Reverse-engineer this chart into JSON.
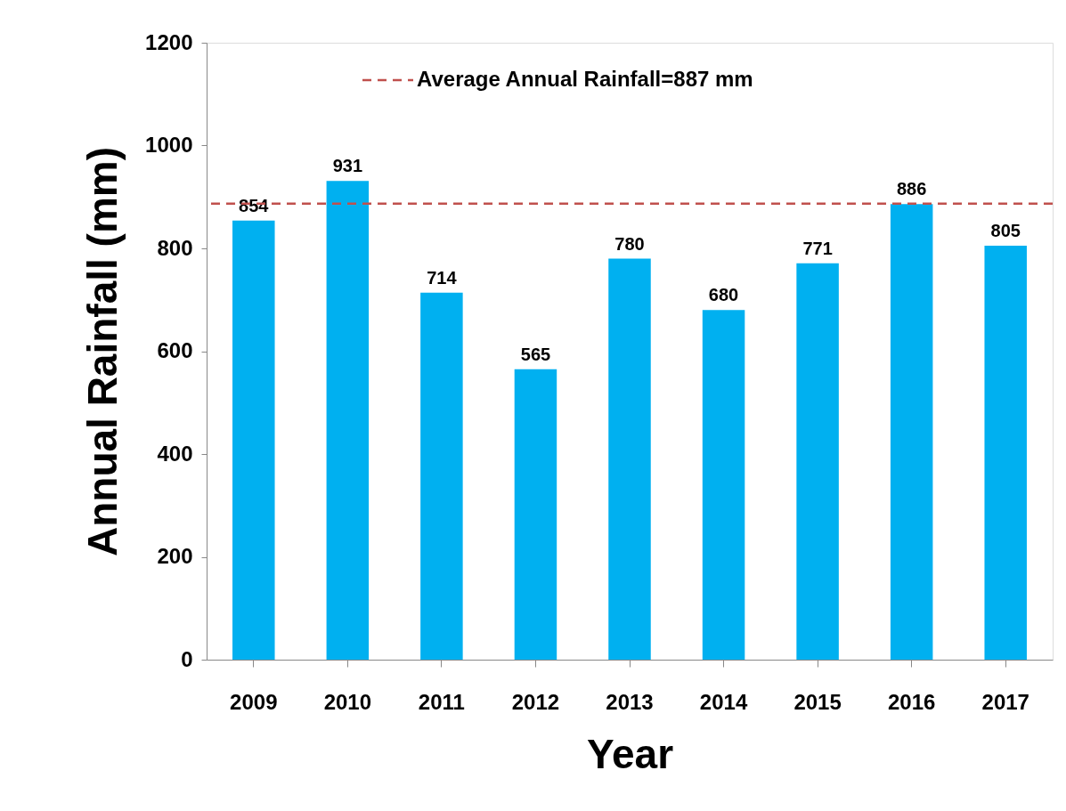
{
  "chart_data": {
    "type": "bar",
    "xlabel": "Year",
    "ylabel": "Annual Rainfall (mm)",
    "categories": [
      "2009",
      "2010",
      "2011",
      "2012",
      "2013",
      "2014",
      "2015",
      "2016",
      "2017"
    ],
    "values": [
      854,
      931,
      714,
      565,
      780,
      680,
      771,
      886,
      805
    ],
    "color": "#00b0f0",
    "ylim": [
      0,
      1200
    ],
    "yticks": [
      0,
      200,
      400,
      600,
      800,
      1000,
      1200
    ],
    "grid": false,
    "data_labels": true,
    "ref_lines": [
      {
        "axis": "y",
        "value": 887,
        "label": "Average Annual Rainfall=887 mm",
        "color": "#c0504d",
        "line_style": "dashed"
      }
    ]
  }
}
